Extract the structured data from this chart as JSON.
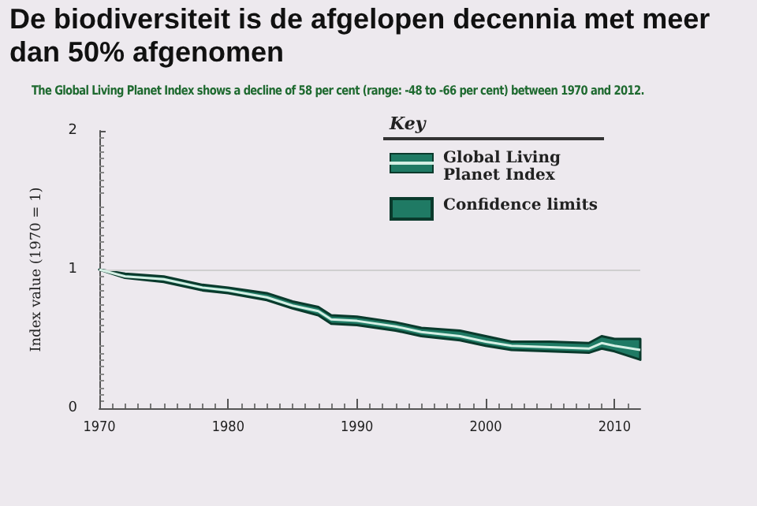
{
  "chart_data": {
    "type": "line",
    "title": "De biodiversiteit is de afgelopen decennia met meer dan 50% afgenomen",
    "subtitle": "The Global Living Planet Index shows a decline of 58 per cent (range: -48 to -66 per cent) between 1970 and 2012.",
    "ylabel": "Index value (1970 = 1)",
    "legend_title": "Key",
    "x": [
      1970,
      1972,
      1975,
      1978,
      1980,
      1983,
      1985,
      1987,
      1988,
      1990,
      1993,
      1995,
      1998,
      2000,
      2002,
      2005,
      2008,
      2009,
      2010,
      2012
    ],
    "series": [
      {
        "name": "Global Living Planet Index",
        "color": "#d4efe4",
        "values": [
          1.0,
          0.95,
          0.93,
          0.87,
          0.85,
          0.8,
          0.74,
          0.7,
          0.64,
          0.63,
          0.59,
          0.55,
          0.52,
          0.48,
          0.45,
          0.44,
          0.43,
          0.47,
          0.45,
          0.42
        ],
        "lower": [
          1.0,
          0.94,
          0.91,
          0.85,
          0.83,
          0.78,
          0.72,
          0.67,
          0.61,
          0.6,
          0.56,
          0.52,
          0.49,
          0.45,
          0.42,
          0.41,
          0.4,
          0.43,
          0.41,
          0.35
        ],
        "upper": [
          1.0,
          0.97,
          0.95,
          0.89,
          0.87,
          0.83,
          0.77,
          0.73,
          0.67,
          0.66,
          0.62,
          0.58,
          0.56,
          0.52,
          0.48,
          0.48,
          0.47,
          0.52,
          0.5,
          0.5
        ]
      }
    ],
    "annotations": [
      "Confidence limits"
    ],
    "xlim": [
      1970,
      2012
    ],
    "xticks": [
      1970,
      1980,
      1990,
      2000,
      2010
    ],
    "ylim": [
      0,
      2
    ],
    "yticks": [
      0,
      1,
      2
    ],
    "ref_lines": [
      {
        "axis": "y",
        "value": 1,
        "color": "#cfcfcf"
      }
    ],
    "grid": false,
    "legend": "top right",
    "marker": "none",
    "line_style": "solid"
  }
}
